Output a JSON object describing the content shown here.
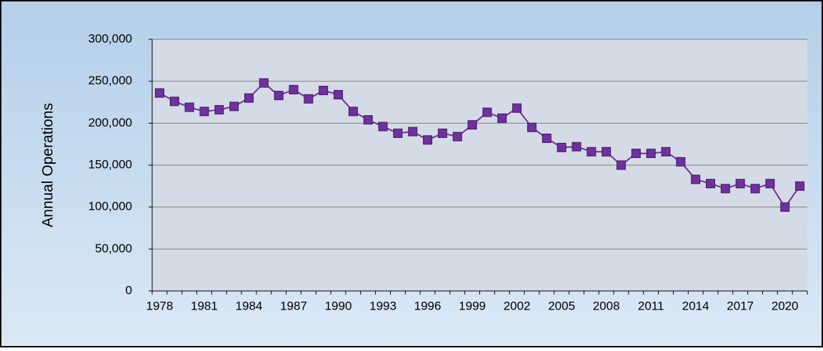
{
  "chart_data": {
    "type": "line",
    "y_label": "Annual Operations",
    "categories": [
      "1978",
      null,
      null,
      "1981",
      null,
      null,
      "1984",
      null,
      null,
      "1987",
      null,
      null,
      "1990",
      null,
      null,
      "1993",
      null,
      null,
      "1996",
      null,
      null,
      "1999",
      null,
      null,
      "2002",
      null,
      null,
      "2005",
      null,
      null,
      "2008",
      null,
      null,
      "2011",
      null,
      null,
      "2014",
      null,
      null,
      "2017",
      null,
      null,
      "2020",
      null
    ],
    "series": [
      {
        "color": "#7030a0",
        "values": [
          236000,
          226000,
          219000,
          214000,
          216000,
          220000,
          230000,
          248000,
          233000,
          240000,
          229000,
          239000,
          234000,
          214000,
          204000,
          196000,
          188000,
          190000,
          180000,
          188000,
          184000,
          198000,
          213000,
          206000,
          218000,
          195000,
          182000,
          171000,
          172000,
          166000,
          166000,
          150000,
          164000,
          164000,
          166000,
          154000,
          133000,
          128000,
          122000,
          128000,
          122000,
          128000,
          100000,
          125000
        ]
      }
    ],
    "ylim": [
      0,
      300000
    ],
    "yticks": [
      0,
      {
        "value": 50000,
        "label": "50,000"
      },
      {
        "value": 100000,
        "label": "100,000"
      },
      {
        "value": 150000,
        "label": "150,000"
      },
      {
        "value": 200000,
        "label": "200,000"
      },
      {
        "value": 250000,
        "label": "250,000"
      },
      {
        "value": 300000,
        "label": "300,000"
      }
    ],
    "grid": true
  }
}
